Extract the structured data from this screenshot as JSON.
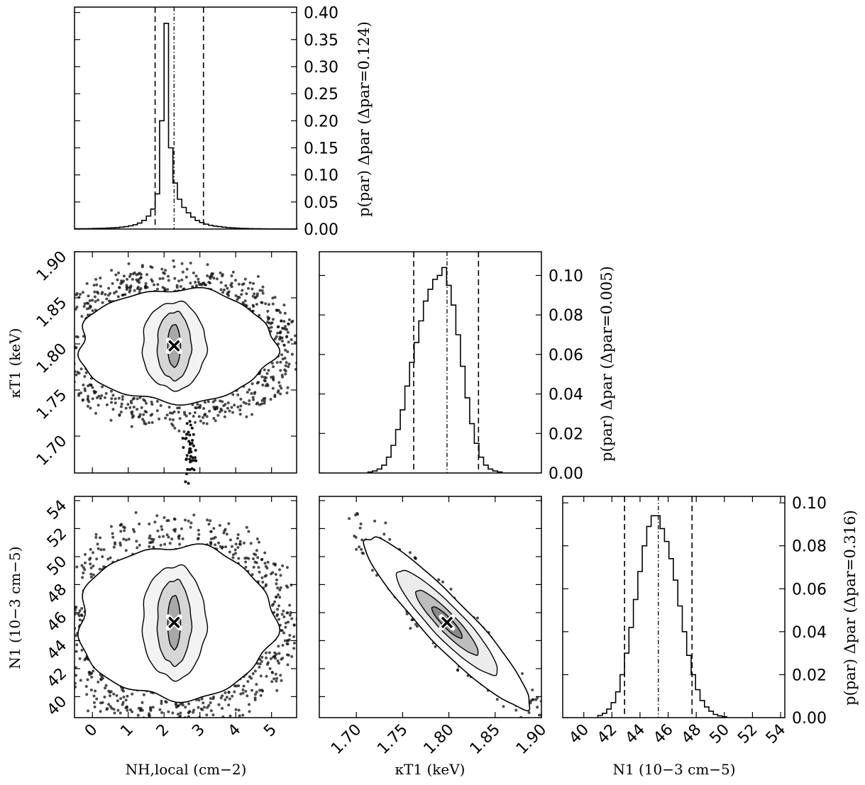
{
  "chart_data": [
    {
      "type": "histogram",
      "panel": "p_nh",
      "xlim": [
        -0.5,
        5.7
      ],
      "ylim": [
        0,
        0.41
      ],
      "ylabel": "p(par) Δpar (Δpar=0.124)",
      "yticks": [
        "0.00",
        "0.05",
        "0.10",
        "0.15",
        "0.20",
        "0.25",
        "0.30",
        "0.35",
        "0.40"
      ],
      "quantiles": {
        "lower": 1.75,
        "median": 2.28,
        "upper": 3.1
      },
      "bin_width": 0.124,
      "bin_start": -0.48,
      "values": [
        0.0005,
        0.0006,
        0.0007,
        0.0008,
        0.001,
        0.0012,
        0.0015,
        0.0018,
        0.0022,
        0.0028,
        0.0035,
        0.0045,
        0.006,
        0.008,
        0.011,
        0.016,
        0.024,
        0.037,
        0.065,
        0.2,
        0.38,
        0.15,
        0.085,
        0.055,
        0.04,
        0.03,
        0.022,
        0.016,
        0.012,
        0.009,
        0.007,
        0.0055,
        0.0045,
        0.0035,
        0.0028,
        0.0022,
        0.0017,
        0.0013,
        0.001,
        0.0008,
        0.0006,
        0.0005,
        0.0004,
        0.0003,
        0.0002,
        0.0002,
        0.0001,
        0.0001,
        0.0001,
        0.0001
      ]
    },
    {
      "type": "scatter-density",
      "panel": "s_kt_nh",
      "xlim": [
        -0.5,
        5.7
      ],
      "ylim": [
        1.66,
        1.9
      ],
      "xticks": [
        "0",
        "1",
        "2",
        "3",
        "4",
        "5"
      ],
      "yticks": [
        "1.70",
        "1.75",
        "1.80",
        "1.85",
        "1.90"
      ],
      "ylabel": "κT1 (keV)",
      "best_fit": {
        "x": 2.28,
        "y": 1.798
      }
    },
    {
      "type": "histogram",
      "panel": "p_kt",
      "xlim": [
        1.66,
        1.9
      ],
      "ylim": [
        0,
        0.112
      ],
      "ylabel": "p(par) Δpar (Δpar=0.005)",
      "yticks": [
        "0.00",
        "0.02",
        "0.04",
        "0.06",
        "0.08",
        "0.10"
      ],
      "quantiles": {
        "lower": 1.762,
        "median": 1.798,
        "upper": 1.832
      },
      "bin_width": 0.005,
      "bin_start": 1.7125,
      "values": [
        0.0005,
        0.001,
        0.002,
        0.004,
        0.008,
        0.014,
        0.022,
        0.032,
        0.044,
        0.056,
        0.066,
        0.077,
        0.087,
        0.093,
        0.098,
        0.1,
        0.104,
        0.095,
        0.085,
        0.07,
        0.054,
        0.038,
        0.025,
        0.015,
        0.008,
        0.004,
        0.002,
        0.001,
        0.0005
      ]
    },
    {
      "type": "scatter-density",
      "panel": "s_n_nh",
      "xlim": [
        -0.5,
        5.7
      ],
      "ylim": [
        38.5,
        54.3
      ],
      "xticks": [
        "0",
        "1",
        "2",
        "3",
        "4",
        "5"
      ],
      "yticks": [
        "40",
        "42",
        "44",
        "46",
        "48",
        "50",
        "52",
        "54"
      ],
      "xlabel": "NH,local (cm−2)",
      "ylabel": "N1 (10−3 cm−5)",
      "best_fit": {
        "x": 2.28,
        "y": 45.3
      }
    },
    {
      "type": "scatter-density",
      "panel": "s_n_kt",
      "xlim": [
        1.66,
        1.9
      ],
      "ylim": [
        38.5,
        54.3
      ],
      "xticks": [
        "1.70",
        "1.75",
        "1.80",
        "1.85",
        "1.90"
      ],
      "xlabel": "κT1 (keV)",
      "best_fit": {
        "x": 1.798,
        "y": 45.3
      }
    },
    {
      "type": "histogram",
      "panel": "p_n",
      "xlim": [
        38.5,
        54.3
      ],
      "ylim": [
        0,
        0.103
      ],
      "xticks": [
        "40",
        "42",
        "44",
        "46",
        "48",
        "50",
        "52",
        "54"
      ],
      "xlabel": "N1 (10−3 cm−5)",
      "ylabel": "p(par) Δpar (Δpar=0.316)",
      "yticks": [
        "0.00",
        "0.02",
        "0.04",
        "0.06",
        "0.08",
        "0.10"
      ],
      "quantiles": {
        "lower": 42.9,
        "median": 45.3,
        "upper": 47.7
      },
      "bin_width": 0.316,
      "bin_start": 41.0,
      "values": [
        0.001,
        0.002,
        0.004,
        0.007,
        0.012,
        0.02,
        0.03,
        0.042,
        0.055,
        0.068,
        0.08,
        0.089,
        0.094,
        0.094,
        0.088,
        0.082,
        0.074,
        0.064,
        0.052,
        0.04,
        0.029,
        0.02,
        0.013,
        0.008,
        0.005,
        0.003,
        0.0015,
        0.0008,
        0.0004
      ]
    }
  ]
}
